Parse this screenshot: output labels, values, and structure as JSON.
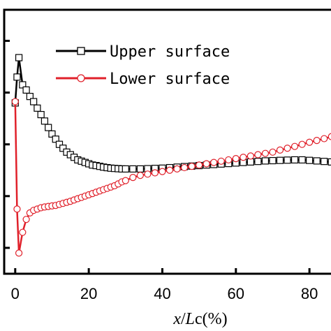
{
  "chart_data": {
    "type": "line",
    "xlabel_parts": {
      "var1": "x",
      "sep": "/",
      "var2": "L",
      "rest": "c(%)"
    },
    "ylabel": "",
    "xlim": [
      -3,
      87
    ],
    "ylim": [
      0,
      1.02
    ],
    "x_ticks": [
      0,
      20,
      40,
      60,
      80
    ],
    "x_tick_labels": [
      "0",
      "20",
      "40",
      "60",
      "80"
    ],
    "y_ticks": [
      0.1,
      0.3,
      0.5,
      0.7,
      0.9
    ],
    "y_tick_labels": [],
    "legend_position": "top-right",
    "grid": false,
    "series": [
      {
        "name": "Upper surface",
        "color": "#000000",
        "marker": "square",
        "x": [
          0,
          0.5,
          1,
          2,
          3,
          4,
          5,
          6,
          7,
          8,
          9,
          10,
          11,
          12,
          13,
          14,
          15,
          16,
          17,
          18,
          19,
          20,
          21,
          22,
          23,
          24,
          25,
          26,
          27,
          28,
          29,
          30,
          32,
          34,
          36,
          38,
          40,
          42,
          44,
          46,
          48,
          50,
          52,
          54,
          56,
          58,
          60,
          62,
          64,
          66,
          68,
          70,
          72,
          74,
          76,
          78,
          80,
          82,
          84,
          86
        ],
        "y": [
          0.66,
          0.76,
          0.835,
          0.73,
          0.71,
          0.685,
          0.665,
          0.64,
          0.615,
          0.59,
          0.565,
          0.54,
          0.52,
          0.5,
          0.485,
          0.47,
          0.46,
          0.45,
          0.44,
          0.435,
          0.43,
          0.425,
          0.42,
          0.418,
          0.415,
          0.412,
          0.41,
          0.408,
          0.407,
          0.406,
          0.405,
          0.405,
          0.405,
          0.405,
          0.406,
          0.407,
          0.408,
          0.41,
          0.412,
          0.414,
          0.416,
          0.418,
          0.42,
          0.422,
          0.424,
          0.426,
          0.428,
          0.43,
          0.432,
          0.434,
          0.436,
          0.437,
          0.438,
          0.439,
          0.44,
          0.44,
          0.438,
          0.436,
          0.434,
          0.432
        ]
      },
      {
        "name": "Lower surface",
        "color": "#e0202a",
        "marker": "circle",
        "x": [
          0,
          0.5,
          1,
          2,
          3,
          4,
          5,
          6,
          7,
          8,
          9,
          10,
          11,
          12,
          13,
          14,
          15,
          16,
          17,
          18,
          19,
          20,
          21,
          22,
          23,
          24,
          25,
          26,
          27,
          28,
          29,
          30,
          32,
          34,
          36,
          38,
          40,
          42,
          44,
          46,
          48,
          50,
          52,
          54,
          56,
          58,
          60,
          62,
          64,
          66,
          68,
          70,
          72,
          74,
          76,
          78,
          80,
          82,
          84,
          86
        ],
        "y": [
          0.665,
          0.25,
          0.08,
          0.16,
          0.21,
          0.235,
          0.245,
          0.25,
          0.255,
          0.258,
          0.26,
          0.262,
          0.264,
          0.268,
          0.272,
          0.276,
          0.28,
          0.285,
          0.29,
          0.295,
          0.3,
          0.305,
          0.31,
          0.315,
          0.32,
          0.325,
          0.33,
          0.335,
          0.34,
          0.347,
          0.355,
          0.36,
          0.372,
          0.38,
          0.385,
          0.39,
          0.395,
          0.4,
          0.405,
          0.41,
          0.415,
          0.42,
          0.425,
          0.43,
          0.435,
          0.44,
          0.445,
          0.45,
          0.455,
          0.46,
          0.465,
          0.47,
          0.478,
          0.485,
          0.492,
          0.5,
          0.508,
          0.515,
          0.522,
          0.53
        ]
      }
    ]
  }
}
